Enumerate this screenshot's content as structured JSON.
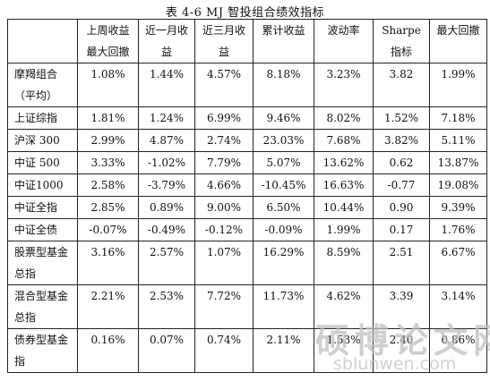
{
  "caption": "表 4-6 MJ 智投组合绩效指标",
  "headers": [
    "",
    "上周收益最大回撤",
    "近一月收益",
    "近三月收益",
    "累计收益",
    "波动率",
    "Sharpe指标",
    "最大回撤"
  ],
  "rows": [
    {
      "name": "摩羯组合（平均）",
      "values": [
        "1.08%",
        "1.44%",
        "4.57%",
        "8.18%",
        "3.23%",
        "3.82",
        "1.99%"
      ]
    },
    {
      "name": "上证综指",
      "values": [
        "1.81%",
        "1.24%",
        "6.99%",
        "9.46%",
        "8.02%",
        "1.52%",
        "7.18%"
      ]
    },
    {
      "name": "沪深 300",
      "values": [
        "2.99%",
        "4.87%",
        "2.74%",
        "23.03%",
        "7.68%",
        "3.82%",
        "5.11%"
      ]
    },
    {
      "name": "中证 500",
      "values": [
        "3.33%",
        "-1.02%",
        "7.79%",
        "5.07%",
        "13.62%",
        "0.62",
        "13.87%"
      ]
    },
    {
      "name": "中证1000",
      "values": [
        "2.58%",
        "-3.79%",
        "4.66%",
        "-10.45%",
        "16.63%",
        "-0.77",
        "19.08%"
      ]
    },
    {
      "name": "中证全指",
      "values": [
        "2.85%",
        "0.89%",
        "9.00%",
        "6.50%",
        "10.44%",
        "0.90",
        "9.39%"
      ]
    },
    {
      "name": "中证全债",
      "values": [
        "-0.07%",
        "-0.49%",
        "-0.12%",
        "-0.09%",
        "1.99%",
        "0.17",
        "1.76%"
      ]
    },
    {
      "name": "股票型基金总指",
      "values": [
        "3.16%",
        "2.57%",
        "1.07%",
        "16.29%",
        "8.59%",
        "2.51",
        "6.67%"
      ]
    },
    {
      "name": "混合型基金总指",
      "values": [
        "2.21%",
        "2.53%",
        "7.72%",
        "11.73%",
        "4.62%",
        "3.39",
        "3.14%"
      ]
    },
    {
      "name": "债券型基金指",
      "values": [
        "0.16%",
        "0.07%",
        "0.74%",
        "2.11%",
        "1.53%",
        "2.40",
        "0.86%"
      ]
    }
  ],
  "watermark": {
    "cn": "硕博论文网",
    "url": "sblunwen.com"
  }
}
